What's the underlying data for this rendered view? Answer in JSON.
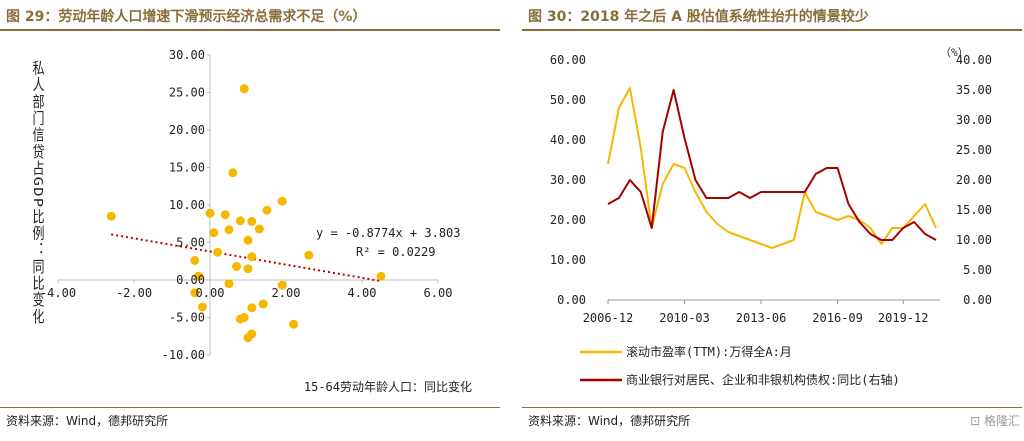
{
  "left": {
    "figure_title": "图 29：劳动年龄人口增速下滑预示经济总需求不足（%）",
    "source": "资料来源：Wind，德邦研究所",
    "colors": {
      "title": "#8a6d3b",
      "points": "#f5b800",
      "trendline": "#c00000"
    }
  },
  "right": {
    "figure_title": "图 30：2018 年之后 A 股估值系统性抬升的情景较少",
    "source": "资料来源：Wind，德邦研究所",
    "unit_label": "（%）",
    "colors": {
      "title": "#8a6d3b",
      "series1": "#f5b800",
      "series2": "#a50000"
    }
  },
  "watermark": "格隆汇",
  "chart_data": [
    {
      "type": "scatter",
      "title": "",
      "xlabel": "15-64劳动年龄人口：同比变化",
      "ylabel": "私人部门信贷占GDP比例：同比变化",
      "xlim": [
        -4,
        6
      ],
      "ylim": [
        -10,
        30
      ],
      "xticks": [
        "-4.00",
        "-2.00",
        "0.00",
        "2.00",
        "4.00",
        "6.00"
      ],
      "yticks": [
        "-10.00",
        "-5.00",
        "0.00",
        "5.00",
        "10.00",
        "15.00",
        "20.00",
        "25.00",
        "30.00"
      ],
      "grid": false,
      "points": [
        {
          "x": -2.6,
          "y": 8.5
        },
        {
          "x": 0.9,
          "y": 25.5
        },
        {
          "x": 0.6,
          "y": 14.3
        },
        {
          "x": 1.9,
          "y": 10.5
        },
        {
          "x": 1.5,
          "y": 9.3
        },
        {
          "x": 0.4,
          "y": 8.7
        },
        {
          "x": 0.0,
          "y": 8.9
        },
        {
          "x": 0.8,
          "y": 7.9
        },
        {
          "x": 1.1,
          "y": 7.8
        },
        {
          "x": 0.5,
          "y": 6.7
        },
        {
          "x": 1.3,
          "y": 6.8
        },
        {
          "x": 0.1,
          "y": 6.3
        },
        {
          "x": 1.0,
          "y": 5.3
        },
        {
          "x": 0.2,
          "y": 3.7
        },
        {
          "x": 1.1,
          "y": 3.1
        },
        {
          "x": 2.6,
          "y": 3.3
        },
        {
          "x": 0.7,
          "y": 1.8
        },
        {
          "x": 1.0,
          "y": 1.5
        },
        {
          "x": -0.4,
          "y": 2.6
        },
        {
          "x": -0.3,
          "y": 0.5
        },
        {
          "x": 4.5,
          "y": 0.5
        },
        {
          "x": 0.5,
          "y": -0.5
        },
        {
          "x": 1.9,
          "y": -0.7
        },
        {
          "x": -0.4,
          "y": -1.7
        },
        {
          "x": 1.4,
          "y": -3.2
        },
        {
          "x": -0.2,
          "y": -3.6
        },
        {
          "x": 1.1,
          "y": -3.7
        },
        {
          "x": 0.9,
          "y": -5.0
        },
        {
          "x": 0.8,
          "y": -5.2
        },
        {
          "x": 2.2,
          "y": -5.9
        },
        {
          "x": 1.1,
          "y": -7.2
        },
        {
          "x": 1.0,
          "y": -7.7
        }
      ],
      "trendline": {
        "slope": -0.8774,
        "intercept": 3.803,
        "x_range": [
          -2.6,
          4.5
        ]
      },
      "annotations": [
        "y = -0.8774x + 3.803",
        "R² = 0.0229"
      ]
    },
    {
      "type": "line",
      "title": "",
      "x": [
        "2006-12",
        "2007-06",
        "2007-12",
        "2008-06",
        "2008-12",
        "2009-06",
        "2009-12",
        "2010-03",
        "2010-09",
        "2011-03",
        "2011-09",
        "2012-03",
        "2012-09",
        "2013-03",
        "2013-06",
        "2013-12",
        "2014-06",
        "2014-12",
        "2015-06",
        "2015-12",
        "2016-06",
        "2016-09",
        "2017-03",
        "2017-09",
        "2018-03",
        "2018-09",
        "2019-03",
        "2019-12",
        "2020-06",
        "2020-12",
        "2021-06"
      ],
      "xticks": [
        "2006-12",
        "2010-03",
        "2013-06",
        "2016-09",
        "2019-12"
      ],
      "ylim_left": [
        0,
        60
      ],
      "ylim_right": [
        0,
        40
      ],
      "yticks_left": [
        "0.00",
        "10.00",
        "20.00",
        "30.00",
        "40.00",
        "50.00",
        "60.00"
      ],
      "yticks_right": [
        "0.00",
        "5.00",
        "10.00",
        "15.00",
        "20.00",
        "25.00",
        "30.00",
        "35.00",
        "40.00"
      ],
      "unit_right": "（%）",
      "legend_position": "bottom",
      "series": [
        {
          "name": "滚动市盈率(TTM):万得全A:月",
          "axis": "left",
          "values": [
            34,
            48,
            53,
            38,
            18,
            29,
            34,
            33,
            27,
            22,
            19,
            17,
            16,
            15,
            14,
            13,
            14,
            15,
            27,
            22,
            21,
            20,
            21,
            20,
            18,
            14,
            18,
            18,
            21,
            24,
            18
          ]
        },
        {
          "name": "商业银行对居民、企业和非银机构债权:同比(右轴)",
          "axis": "right",
          "values": [
            16,
            17,
            20,
            18,
            12,
            28,
            35,
            27,
            20,
            17,
            17,
            17,
            18,
            17,
            18,
            18,
            18,
            18,
            18,
            21,
            22,
            22,
            16,
            13,
            11,
            10,
            10,
            12,
            13,
            11,
            10
          ]
        }
      ]
    }
  ]
}
